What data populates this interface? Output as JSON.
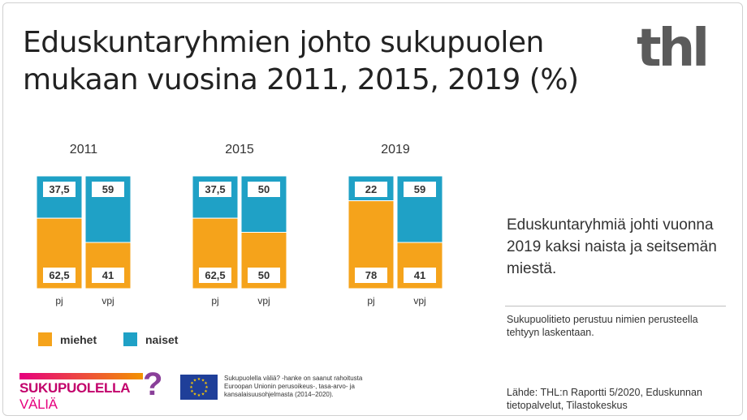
{
  "title_lines": [
    "Eduskuntaryhmien johto sukupuolen",
    "mukaan vuosina 2011, 2015, 2019 (%)"
  ],
  "logo_text": "thl",
  "colors": {
    "miehet": "#f5a31b",
    "naiset": "#1fa1c6",
    "border": "#ffffff"
  },
  "chart_data": {
    "type": "bar",
    "stacked": true,
    "years": [
      "2011",
      "2015",
      "2019"
    ],
    "categories": [
      "pj",
      "vpj"
    ],
    "ylim": [
      0,
      100
    ],
    "series": [
      {
        "name": "miehet",
        "values": [
          [
            62.5,
            41
          ],
          [
            62.5,
            50
          ],
          [
            78,
            41
          ]
        ],
        "labels": [
          [
            "62,5",
            "41"
          ],
          [
            "62,5",
            "50"
          ],
          [
            "78",
            "41"
          ]
        ]
      },
      {
        "name": "naiset",
        "values": [
          [
            37.5,
            59
          ],
          [
            37.5,
            50
          ],
          [
            22,
            59
          ]
        ],
        "labels": [
          [
            "37,5",
            "59"
          ],
          [
            "37,5",
            "50"
          ],
          [
            "22",
            "59"
          ]
        ]
      }
    ],
    "legend": [
      {
        "key": "miehet",
        "label": "miehet"
      },
      {
        "key": "naiset",
        "label": "naiset"
      }
    ],
    "legend_position": "bottom-left"
  },
  "summary": "Eduskuntaryhmiä johti vuonna 2019 kaksi naista ja seitsemän miestä.",
  "note": "Sukupuolitieto perustuu nimien perusteella tehtyyn laskentaan.",
  "source": "Lähde: THL:n Raportti 5/2020, Eduskunnan tietopalvelut, Tilastokeskus",
  "brand": {
    "main": "SUKUPUOLELLA",
    "light": "VÄLIÄ",
    "mark": "?"
  },
  "eu_text": "Sukupuolella väliä? -hanke on saanut rahoitusta Euroopan Unionin perusoikeus-, tasa-arvo- ja kansalaisuusohjelmasta (2014–2020)."
}
